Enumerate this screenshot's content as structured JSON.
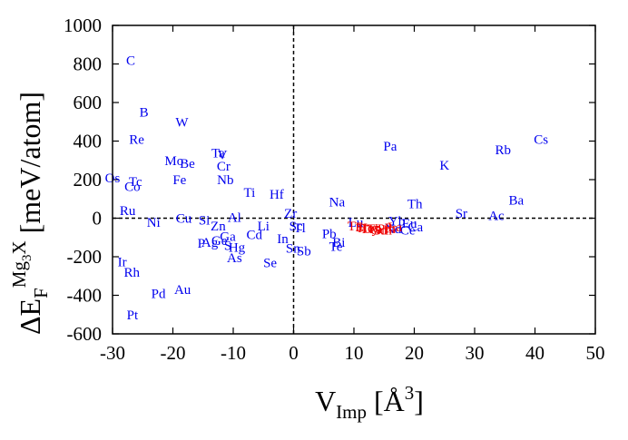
{
  "chart_data": {
    "type": "scatter",
    "title": "",
    "xlabel": {
      "main": "V",
      "sub": "Imp",
      "unit_open": " [Å",
      "unit_sup": "3",
      "unit_close": "]"
    },
    "ylabel": {
      "prefix": "ΔE",
      "sub": "F",
      "sup": "Mg",
      "sup_sub": "3",
      "sup_tail": "X",
      "unit": " [meV/atom]"
    },
    "xlim": [
      -30,
      50
    ],
    "ylim": [
      -600,
      1000
    ],
    "xticks": [
      -30,
      -20,
      -10,
      0,
      10,
      20,
      30,
      40,
      50
    ],
    "yticks": [
      -600,
      -400,
      -200,
      0,
      200,
      400,
      600,
      800,
      1000
    ],
    "reference_lines": {
      "x": 0,
      "y": 0
    },
    "colors": {
      "blue_series": "#0000ee",
      "red_series": "#ee0000",
      "axis": "#000000"
    },
    "series": [
      {
        "name": "blue",
        "points": [
          {
            "label": "C",
            "x": -27.0,
            "y": 820
          },
          {
            "label": "B",
            "x": -24.8,
            "y": 550
          },
          {
            "label": "W",
            "x": -18.5,
            "y": 500
          },
          {
            "label": "Re",
            "x": -26.0,
            "y": 410
          },
          {
            "label": "Ta",
            "x": -12.5,
            "y": 340
          },
          {
            "label": "V",
            "x": -11.8,
            "y": 330
          },
          {
            "label": "Mo",
            "x": -19.8,
            "y": 300
          },
          {
            "label": "Be",
            "x": -17.6,
            "y": 285
          },
          {
            "label": "Cr",
            "x": -11.6,
            "y": 270
          },
          {
            "label": "Os",
            "x": -30.0,
            "y": 210
          },
          {
            "label": "Tc",
            "x": -26.2,
            "y": 190
          },
          {
            "label": "Fe",
            "x": -18.9,
            "y": 200
          },
          {
            "label": "Nb",
            "x": -11.3,
            "y": 200
          },
          {
            "label": "Co",
            "x": -26.7,
            "y": 165
          },
          {
            "label": "Ti",
            "x": -7.3,
            "y": 135
          },
          {
            "label": "Hf",
            "x": -2.8,
            "y": 125
          },
          {
            "label": "Ru",
            "x": -27.5,
            "y": 40
          },
          {
            "label": "Zr",
            "x": -0.5,
            "y": 25
          },
          {
            "label": "Cu",
            "x": -18.2,
            "y": 0
          },
          {
            "label": "Al",
            "x": -9.8,
            "y": 5
          },
          {
            "label": "Ni",
            "x": -23.2,
            "y": -20
          },
          {
            "label": "Si",
            "x": -14.8,
            "y": -10
          },
          {
            "label": "Zn",
            "x": -12.5,
            "y": -40
          },
          {
            "label": "Li",
            "x": -5.0,
            "y": -40
          },
          {
            "label": "Cd",
            "x": -6.5,
            "y": -85
          },
          {
            "label": "Ga",
            "x": -10.9,
            "y": -95
          },
          {
            "label": "In",
            "x": -1.8,
            "y": -105
          },
          {
            "label": "Ge",
            "x": -12.3,
            "y": -115
          },
          {
            "label": "Ag",
            "x": -13.9,
            "y": -125
          },
          {
            "label": "P",
            "x": -15.3,
            "y": -130
          },
          {
            "label": "S",
            "x": -10.9,
            "y": -140
          },
          {
            "label": "Hg",
            "x": -9.4,
            "y": -150
          },
          {
            "label": "Sn",
            "x": -0.1,
            "y": -155
          },
          {
            "label": "Sb",
            "x": 1.7,
            "y": -170
          },
          {
            "label": "As",
            "x": -9.8,
            "y": -205
          },
          {
            "label": "Se",
            "x": -3.9,
            "y": -230
          },
          {
            "label": "Ir",
            "x": -28.4,
            "y": -225
          },
          {
            "label": "Rh",
            "x": -26.8,
            "y": -280
          },
          {
            "label": "Pd",
            "x": -22.4,
            "y": -390
          },
          {
            "label": "Au",
            "x": -18.4,
            "y": -370
          },
          {
            "label": "Pt",
            "x": -26.7,
            "y": -500
          },
          {
            "label": "Sc",
            "x": 0.4,
            "y": -40
          },
          {
            "label": "Tl",
            "x": 1.0,
            "y": -50
          },
          {
            "label": "Pb",
            "x": 5.9,
            "y": -80
          },
          {
            "label": "Bi",
            "x": 7.5,
            "y": -125
          },
          {
            "label": "Te",
            "x": 7.0,
            "y": -145
          },
          {
            "label": "Na",
            "x": 7.2,
            "y": 85
          },
          {
            "label": "Lu",
            "x": 10.3,
            "y": -20
          },
          {
            "label": "Th",
            "x": 20.1,
            "y": 75
          },
          {
            "label": "Yb",
            "x": 17.1,
            "y": -15
          },
          {
            "label": "Eu",
            "x": 19.2,
            "y": -25
          },
          {
            "label": "Ca",
            "x": 20.2,
            "y": -45
          },
          {
            "label": "Ce",
            "x": 18.9,
            "y": -60
          },
          {
            "label": "Nd",
            "x": 16.5,
            "y": -55
          },
          {
            "label": "Pa",
            "x": 16.0,
            "y": 375
          },
          {
            "label": "K",
            "x": 25.0,
            "y": 275
          },
          {
            "label": "Rb",
            "x": 34.7,
            "y": 355
          },
          {
            "label": "Cs",
            "x": 41.0,
            "y": 410
          },
          {
            "label": "Ba",
            "x": 36.9,
            "y": 95
          },
          {
            "label": "Sr",
            "x": 27.8,
            "y": 25
          },
          {
            "label": "Ac",
            "x": 33.6,
            "y": 15
          }
        ]
      },
      {
        "name": "red",
        "points": [
          {
            "label": "Tm",
            "x": 10.5,
            "y": -40
          },
          {
            "label": "Er",
            "x": 11.3,
            "y": -45
          },
          {
            "label": "Ho",
            "x": 12.0,
            "y": -50
          },
          {
            "label": "Dy",
            "x": 12.7,
            "y": -55
          },
          {
            "label": "Tb",
            "x": 13.4,
            "y": -55
          },
          {
            "label": "Gd",
            "x": 14.1,
            "y": -60
          },
          {
            "label": "Sm",
            "x": 14.8,
            "y": -60
          },
          {
            "label": "Pm",
            "x": 15.4,
            "y": -55
          },
          {
            "label": "Pr",
            "x": 16.1,
            "y": -50
          },
          {
            "label": "La",
            "x": 16.8,
            "y": -45
          }
        ]
      }
    ]
  }
}
